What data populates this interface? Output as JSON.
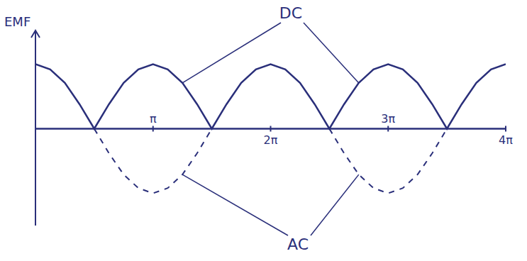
{
  "chart_data": {
    "type": "line",
    "ylabel": "EMF",
    "x": [
      0,
      0.3927,
      0.7854,
      1.1781,
      1.5708,
      1.9635,
      2.3562,
      2.7489,
      3.1416,
      3.5343,
      3.927,
      4.3197,
      4.7124,
      5.1051,
      5.4978,
      5.8905,
      6.2832,
      6.6759,
      7.0686,
      7.4613,
      7.854,
      8.2467,
      8.6394,
      9.0321,
      9.4248,
      9.8175,
      10.2102,
      10.6029,
      10.9956,
      11.3883,
      11.781,
      12.1737,
      12.5664
    ],
    "series": [
      {
        "name": "DC",
        "color": "#2a2f7a",
        "line_style": "solid",
        "values": [
          1,
          0.92,
          0.71,
          0.38,
          0,
          0.38,
          0.71,
          0.92,
          1,
          0.92,
          0.71,
          0.38,
          0,
          0.38,
          0.71,
          0.92,
          1,
          0.92,
          0.71,
          0.38,
          0,
          0.38,
          0.71,
          0.92,
          1,
          0.92,
          0.71,
          0.38,
          0,
          0.38,
          0.71,
          0.92,
          1
        ]
      },
      {
        "name": "AC",
        "color": "#2a2f7a",
        "line_style": "dashed",
        "values": [
          null,
          null,
          null,
          null,
          0,
          -0.38,
          -0.71,
          -0.92,
          -1,
          -0.92,
          -0.71,
          -0.38,
          0,
          null,
          null,
          null,
          null,
          null,
          null,
          null,
          0,
          -0.38,
          -0.71,
          -0.92,
          -1,
          -0.92,
          -0.71,
          -0.38,
          0,
          null,
          null,
          null,
          null
        ]
      }
    ],
    "xlim": [
      0,
      12.5664
    ],
    "xticks": [
      {
        "value": 3.1416,
        "label": "π"
      },
      {
        "value": 6.2832,
        "label": "2π"
      },
      {
        "value": 9.4248,
        "label": "3π"
      },
      {
        "value": 12.5664,
        "label": "4π"
      }
    ],
    "ylim": [
      -1.5,
      1.5
    ],
    "yticks": [],
    "tick_labels": "x"
  }
}
